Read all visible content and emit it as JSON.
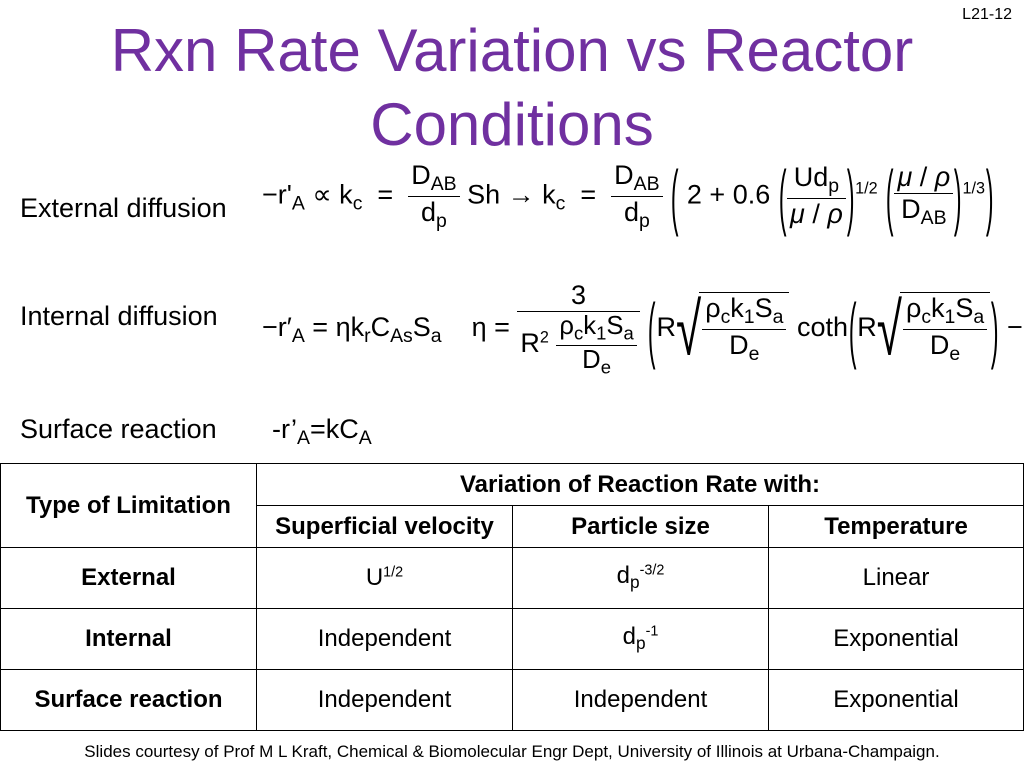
{
  "slide_number": "L21-12",
  "title_line1": "Rxn Rate Variation vs Reactor",
  "title_line2": "Conditions",
  "rows": {
    "external": {
      "label": "External diffusion"
    },
    "internal": {
      "label": "Internal diffusion"
    },
    "surface": {
      "label": "Surface reaction",
      "equation": "-r’A=kCA"
    }
  },
  "table": {
    "type_header": "Type of Limitation",
    "variation_header": "Variation of Reaction Rate with:",
    "columns": [
      "Superficial velocity",
      "Particle size",
      "Temperature"
    ],
    "data": [
      {
        "type": "External",
        "velocity_base": "U",
        "velocity_exp": "1/2",
        "size_base": "d",
        "size_sub": "p",
        "size_exp": "-3/2",
        "temperature": "Linear"
      },
      {
        "type": "Internal",
        "velocity": "Independent",
        "size_base": "d",
        "size_sub": "p",
        "size_exp": "-1",
        "temperature": "Exponential"
      },
      {
        "type": "Surface reaction",
        "velocity": "Independent",
        "size": "Independent",
        "temperature": "Exponential"
      }
    ]
  },
  "footer": "Slides courtesy of Prof M L Kraft, Chemical & Biomolecular Engr Dept, University of Illinois at Urbana-Champaign.",
  "colors": {
    "title": "#7030a0"
  }
}
